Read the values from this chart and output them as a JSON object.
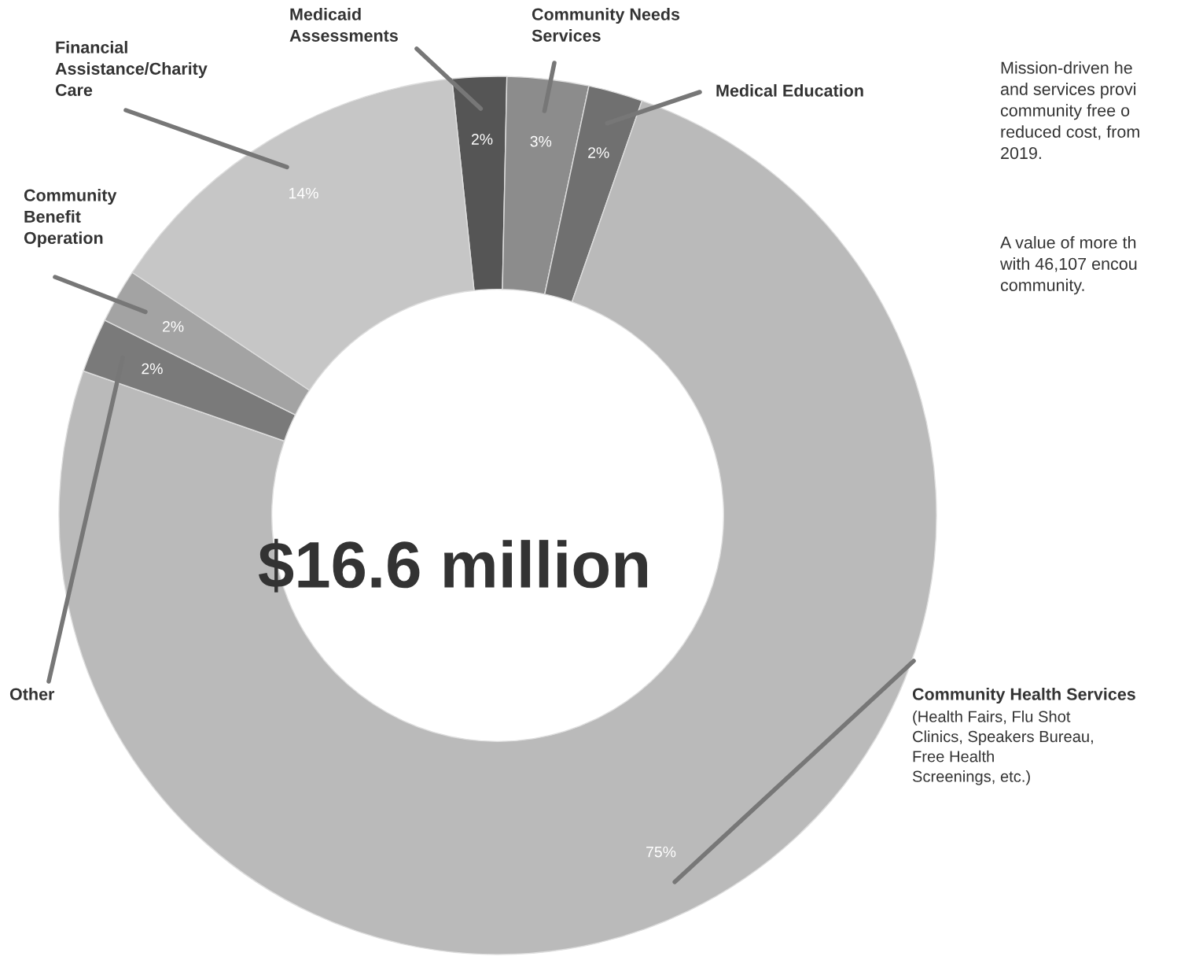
{
  "chart_data": {
    "type": "donut",
    "categories": [
      "Medicaid\nAssessments",
      "Community Needs\nServices",
      "Medical Education",
      "Community Health Services",
      "Other",
      "Community\nBenefit\nOperation",
      "Financial\nAssistance/Charity\nCare"
    ],
    "values": [
      2,
      3,
      2,
      75,
      2,
      2,
      14
    ],
    "colors": [
      "#555555",
      "#8c8c8c",
      "#707070",
      "#bababa",
      "#7a7a7a",
      "#a3a3a3",
      "#c6c6c6"
    ],
    "value_labels": [
      "2%",
      "3%",
      "2%",
      "75%",
      "2%",
      "2%",
      "14%"
    ],
    "annotations": [
      "$16.6 million",
      "(Health Fairs, Flu Shot\nClinics, Speakers Bureau,\nFree Health\nScreenings, etc.)",
      "Mission-driven he\nand services provi\ncommunity free o\nreduced cost, from\n2019.",
      "A value of more th\nwith 46,107 encou\ncommunity."
    ]
  }
}
